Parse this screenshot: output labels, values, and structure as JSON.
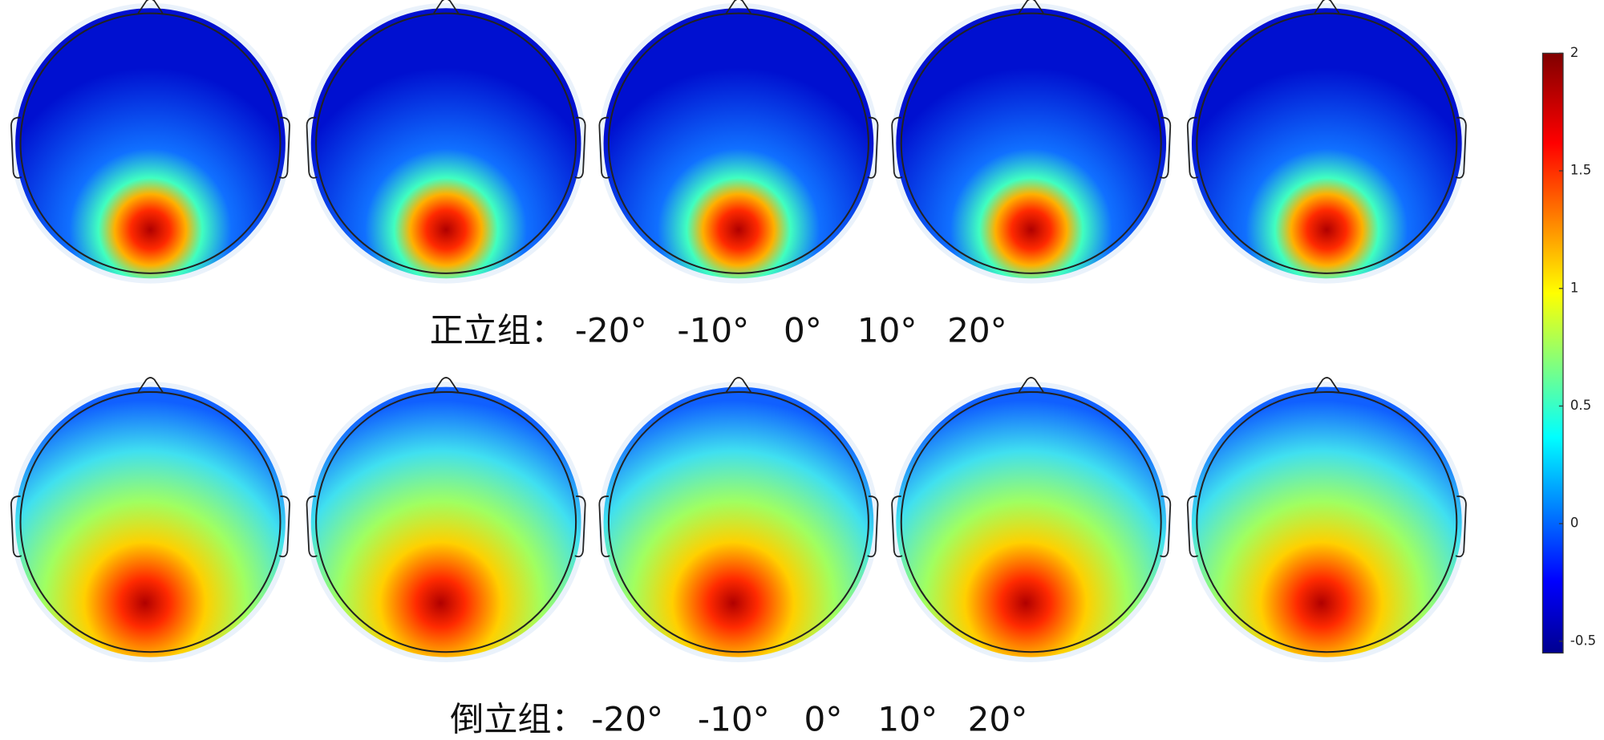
{
  "chart_data": {
    "type": "topomap",
    "rows": [
      {
        "label": "正立组：",
        "angles": [
          "-20°",
          "-10°",
          "0°",
          "10°",
          "20°"
        ]
      },
      {
        "label": "倒立组：",
        "angles": [
          "-20°",
          "-10°",
          "0°",
          "10°",
          "20°"
        ]
      }
    ],
    "colorbar": {
      "lim": [
        -0.55,
        2
      ],
      "ticks": [
        2,
        1.5,
        1,
        0.5,
        0,
        -0.5
      ]
    }
  }
}
